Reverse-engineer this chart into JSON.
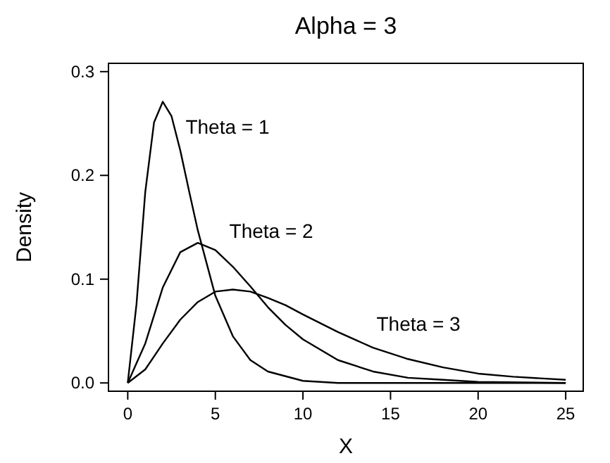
{
  "chart_data": {
    "type": "line",
    "title": "Alpha = 3",
    "xlabel": "X",
    "ylabel": "Density",
    "xlim": [
      -1.1,
      26
    ],
    "ylim": [
      -0.008,
      0.308
    ],
    "xticks": [
      0,
      5,
      10,
      15,
      20,
      25
    ],
    "yticks": [
      {
        "value": 0,
        "label": "0.0"
      },
      0.1,
      0.2,
      0.3
    ],
    "grid": false,
    "marker": "none",
    "line_style": "solid",
    "series": [
      {
        "name": "Theta = 1",
        "color": "#000000",
        "x": [
          0,
          0.5,
          1,
          1.5,
          2,
          2.5,
          3,
          3.5,
          4,
          5,
          6,
          7,
          8,
          10,
          12,
          15,
          20,
          25
        ],
        "values": [
          0,
          0.076,
          0.184,
          0.251,
          0.271,
          0.257,
          0.224,
          0.185,
          0.147,
          0.084,
          0.045,
          0.022,
          0.011,
          0.002,
          0,
          0,
          0,
          0
        ]
      },
      {
        "name": "Theta = 2",
        "color": "#000000",
        "x": [
          0,
          1,
          2,
          3,
          4,
          5,
          6,
          7,
          8,
          9,
          10,
          12,
          14,
          16,
          18,
          20,
          25
        ],
        "values": [
          0,
          0.038,
          0.092,
          0.126,
          0.135,
          0.128,
          0.112,
          0.093,
          0.073,
          0.056,
          0.042,
          0.022,
          0.011,
          0.005,
          0.003,
          0.001,
          0
        ]
      },
      {
        "name": "Theta = 3",
        "color": "#000000",
        "x": [
          0,
          1,
          2,
          3,
          4,
          5,
          6,
          7,
          8,
          9,
          10,
          12,
          14,
          16,
          18,
          20,
          22,
          25
        ],
        "values": [
          0,
          0.013,
          0.038,
          0.061,
          0.078,
          0.088,
          0.09,
          0.088,
          0.082,
          0.075,
          0.066,
          0.049,
          0.034,
          0.023,
          0.015,
          0.009,
          0.006,
          0.003
        ]
      }
    ]
  }
}
